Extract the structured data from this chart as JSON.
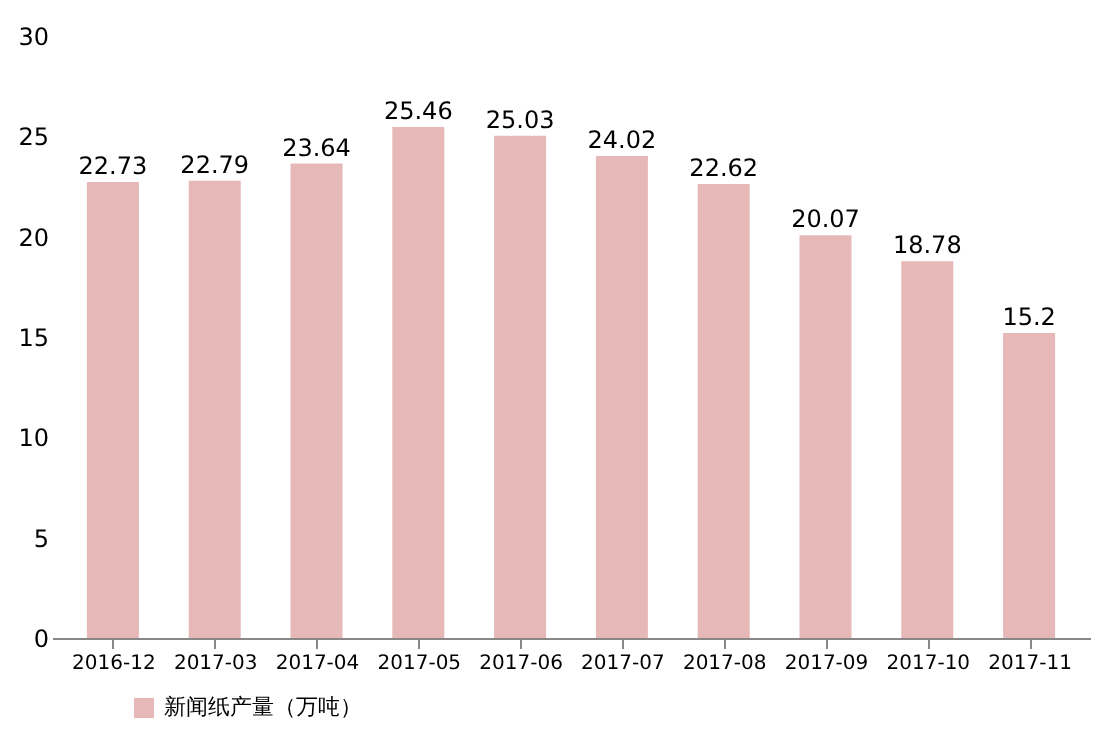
{
  "chart_data": {
    "type": "bar",
    "categories": [
      "2016-12",
      "2017-03",
      "2017-04",
      "2017-05",
      "2017-06",
      "2017-07",
      "2017-08",
      "2017-09",
      "2017-10",
      "2017-11"
    ],
    "series": [
      {
        "name": "新闻纸产量（万吨）",
        "color": "#e6b9b8",
        "values": [
          22.73,
          22.79,
          23.64,
          25.46,
          25.03,
          24.02,
          22.62,
          20.07,
          18.78,
          15.2
        ]
      }
    ],
    "ylim": [
      0,
      30
    ],
    "yticks": [
      0,
      5,
      10,
      15,
      20,
      25,
      30
    ],
    "data_labels": true,
    "legend": "bottom left",
    "grid": false
  }
}
